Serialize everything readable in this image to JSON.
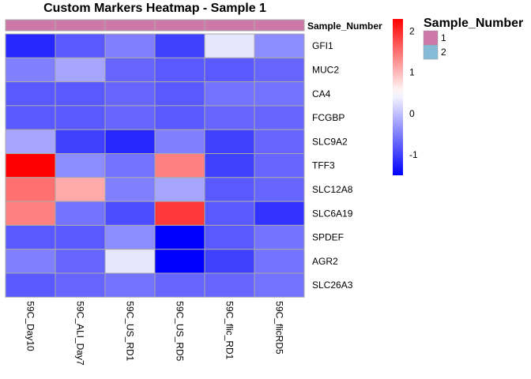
{
  "chart_data": {
    "type": "heatmap",
    "title": "Custom Markers Heatmap - Sample 1",
    "rows": [
      "GFI1",
      "MUC2",
      "CA4",
      "FCGBP",
      "SLC9A2",
      "TFF3",
      "SLC12A8",
      "SLC6A19",
      "SPDEF",
      "AGR2",
      "SLC26A3"
    ],
    "columns": [
      "59C_Day10",
      "59C_ALI_Day7",
      "59C_US_RD1",
      "59C_US_RD5",
      "59C_flic_RD1",
      "59C_flicRD5"
    ],
    "values": [
      [
        -1.2,
        -0.8,
        -0.5,
        -1.0,
        0.3,
        -0.4
      ],
      [
        -0.5,
        -0.2,
        -0.7,
        -0.8,
        -0.8,
        -0.7
      ],
      [
        -0.8,
        -0.8,
        -0.7,
        -0.8,
        -0.6,
        -0.6
      ],
      [
        -0.8,
        -0.8,
        -0.7,
        -0.8,
        -0.7,
        -0.7
      ],
      [
        -0.2,
        -1.0,
        -1.2,
        -0.5,
        -1.0,
        -0.7
      ],
      [
        2.3,
        -0.4,
        -0.6,
        1.4,
        -1.0,
        -0.7
      ],
      [
        1.5,
        1.1,
        -0.5,
        -0.2,
        -0.8,
        -0.7
      ],
      [
        1.4,
        -0.6,
        -0.9,
        1.9,
        -0.8,
        -1.1
      ],
      [
        -0.8,
        -0.8,
        -0.4,
        -1.5,
        -0.8,
        -0.6
      ],
      [
        -0.5,
        -0.7,
        0.3,
        -1.5,
        -1.0,
        -0.6
      ],
      [
        -0.8,
        -0.7,
        -0.6,
        -0.7,
        -0.7,
        -0.6
      ]
    ],
    "color_scale": {
      "low": "#0000ff",
      "mid": "#ffffff",
      "high": "#ff0000",
      "min": -1.5,
      "mid_value": 0.5,
      "max": 2.3
    },
    "legend_ticks": [
      2,
      1,
      0,
      -1
    ],
    "annotation": {
      "name": "Sample_Number",
      "values": [
        "1",
        "1",
        "1",
        "1",
        "1",
        "1"
      ],
      "levels": [
        "1",
        "2"
      ],
      "colors": {
        "1": "#cd78a9",
        "2": "#86bbd8"
      }
    }
  }
}
